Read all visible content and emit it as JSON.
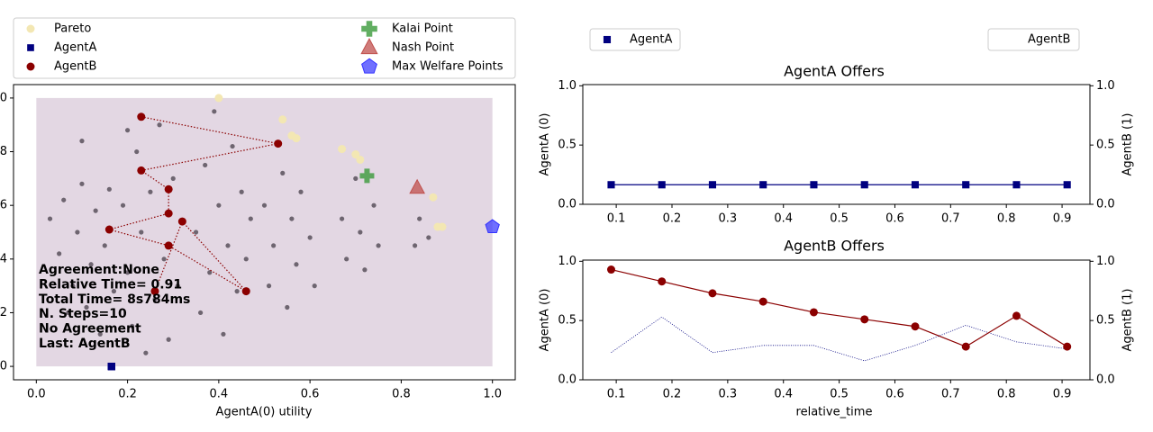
{
  "chart_data": [
    {
      "type": "scatter",
      "xlabel": "AgentA(0) utility",
      "xlim": [
        -0.05,
        1.05
      ],
      "ylim": [
        -0.05,
        1.05
      ],
      "xticks": [
        {
          "value": 0,
          "label": "0.0"
        },
        0.2,
        0.4,
        0.6,
        0.8,
        {
          "value": 1,
          "label": "1.0"
        }
      ],
      "yticks": [
        {
          "value": 0,
          "label": "0.0"
        },
        0.2,
        0.4,
        0.6,
        0.8,
        {
          "value": 1,
          "label": "1.0"
        }
      ],
      "region": {
        "x": [
          0,
          1
        ],
        "y": [
          0,
          1
        ],
        "color": "#e3d7e3"
      },
      "outcomes": {
        "color": "#6e6570",
        "x": [
          0.03,
          0.05,
          0.06,
          0.08,
          0.09,
          0.1,
          0.11,
          0.12,
          0.13,
          0.14,
          0.15,
          0.16,
          0.17,
          0.07,
          0.1,
          0.19,
          0.2,
          0.21,
          0.22,
          0.23,
          0.24,
          0.25,
          0.26,
          0.27,
          0.28,
          0.29,
          0.3,
          0.31,
          0.2,
          0.35,
          0.36,
          0.37,
          0.38,
          0.39,
          0.4,
          0.41,
          0.42,
          0.43,
          0.44,
          0.45,
          0.46,
          0.47,
          0.5,
          0.51,
          0.52,
          0.54,
          0.55,
          0.56,
          0.57,
          0.58,
          0.6,
          0.61,
          0.67,
          0.68,
          0.7,
          0.71,
          0.72,
          0.74,
          0.75,
          0.83,
          0.84,
          0.86
        ],
        "y": [
          0.55,
          0.42,
          0.62,
          0.3,
          0.5,
          0.68,
          0.22,
          0.38,
          0.58,
          0.12,
          0.45,
          0.66,
          0.28,
          0.2,
          0.84,
          0.6,
          0.35,
          0.15,
          0.8,
          0.5,
          0.05,
          0.65,
          0.25,
          0.9,
          0.4,
          0.1,
          0.7,
          0.3,
          0.88,
          0.5,
          0.2,
          0.75,
          0.35,
          0.95,
          0.6,
          0.12,
          0.45,
          0.82,
          0.28,
          0.65,
          0.4,
          0.55,
          0.6,
          0.3,
          0.45,
          0.72,
          0.22,
          0.55,
          0.38,
          0.65,
          0.48,
          0.3,
          0.55,
          0.4,
          0.7,
          0.5,
          0.36,
          0.6,
          0.45,
          0.45,
          0.55,
          0.48
        ]
      },
      "series": [
        {
          "name": "Pareto",
          "color": "#f3e7b3",
          "marker": "circle",
          "x": [
            0.4,
            0.54,
            0.56,
            0.57,
            0.67,
            0.7,
            0.71,
            0.87,
            0.89,
            0.88
          ],
          "y": [
            1.0,
            0.92,
            0.86,
            0.85,
            0.81,
            0.79,
            0.77,
            0.63,
            0.52,
            0.52
          ]
        },
        {
          "name": "AgentA",
          "color": "#000080",
          "marker": "square",
          "x": [
            0.165,
            0.165,
            0.165,
            0.165,
            0.165,
            0.165,
            0.165,
            0.165,
            0.165,
            0.165
          ],
          "y": [
            0,
            0,
            0,
            0,
            0,
            0,
            0,
            0,
            0,
            0
          ]
        },
        {
          "name": "AgentB",
          "color": "#8b0000",
          "marker": "circle",
          "line": true,
          "x": [
            0.23,
            0.53,
            0.23,
            0.29,
            0.29,
            0.16,
            0.29,
            0.46,
            0.32,
            0.26
          ],
          "y": [
            0.93,
            0.83,
            0.73,
            0.66,
            0.57,
            0.51,
            0.45,
            0.28,
            0.54,
            0.28
          ]
        },
        {
          "name": "Kalai Point",
          "color": "#3a9a3a",
          "marker": "plus",
          "x": [
            0.725
          ],
          "y": [
            0.71
          ]
        },
        {
          "name": "Nash Point",
          "color": "#c0504d",
          "marker": "triangle",
          "x": [
            0.835
          ],
          "y": [
            0.665
          ]
        },
        {
          "name": "Max Welfare Points",
          "color": "#3333ff",
          "marker": "pentagon",
          "x": [
            1.0
          ],
          "y": [
            0.52
          ]
        }
      ],
      "annotation": [
        "Agreement:None",
        "Relative Time= 0.91",
        "Total Time= 8s784ms",
        "N. Steps=10",
        "No Agreement",
        "Last: AgentB"
      ]
    },
    {
      "type": "line",
      "title": "AgentA Offers",
      "ylabel": "AgentA (0)",
      "y2label": "AgentB (1)",
      "x": [
        0.0909,
        0.1818,
        0.2727,
        0.3636,
        0.4545,
        0.5455,
        0.6364,
        0.7273,
        0.8182,
        0.9091
      ],
      "xlim": [
        0.04,
        0.95
      ],
      "ylim": [
        0,
        1.01
      ],
      "y2lim": [
        0,
        1.01
      ],
      "xticks": [
        0.1,
        0.2,
        0.3,
        0.4,
        0.5,
        0.6,
        0.7,
        0.8,
        0.9
      ],
      "yticks": [
        {
          "value": 0,
          "label": "0.0"
        },
        0.5,
        {
          "value": 1,
          "label": "1.0"
        }
      ],
      "y2ticks": [
        {
          "value": 0,
          "label": "0.0"
        },
        0.5,
        {
          "value": 1,
          "label": "1.0"
        }
      ],
      "series": [
        {
          "name": "AgentA",
          "color": "#000080",
          "marker": "square",
          "style": "solid",
          "values": [
            0.165,
            0.165,
            0.165,
            0.165,
            0.165,
            0.165,
            0.165,
            0.165,
            0.165,
            0.165
          ]
        },
        {
          "name": "AgentB",
          "color": "#000080",
          "marker": "none",
          "style": "dotted",
          "axis": "y2",
          "values": [
            0,
            0,
            0,
            0,
            0,
            0,
            0,
            0,
            0,
            0
          ]
        }
      ]
    },
    {
      "type": "line",
      "title": "AgentB Offers",
      "ylabel": "AgentA (0)",
      "y2label": "AgentB (1)",
      "xlabel": "relative_time",
      "x": [
        0.0909,
        0.1818,
        0.2727,
        0.3636,
        0.4545,
        0.5455,
        0.6364,
        0.7273,
        0.8182,
        0.9091
      ],
      "xlim": [
        0.04,
        0.95
      ],
      "ylim": [
        0,
        1.01
      ],
      "y2lim": [
        0,
        1.01
      ],
      "xticks": [
        0.1,
        0.2,
        0.3,
        0.4,
        0.5,
        0.6,
        0.7,
        0.8,
        0.9
      ],
      "yticks": [
        {
          "value": 0,
          "label": "0.0"
        },
        0.5,
        {
          "value": 1,
          "label": "1.0"
        }
      ],
      "y2ticks": [
        {
          "value": 0,
          "label": "0.0"
        },
        0.5,
        {
          "value": 1,
          "label": "1.0"
        }
      ],
      "series": [
        {
          "color": "#000080",
          "marker": "none",
          "style": "dotted",
          "values": [
            0.23,
            0.53,
            0.23,
            0.29,
            0.29,
            0.16,
            0.29,
            0.46,
            0.32,
            0.26
          ]
        },
        {
          "color": "#8b0000",
          "marker": "circle",
          "style": "solid",
          "axis": "y2",
          "values": [
            0.93,
            0.83,
            0.73,
            0.66,
            0.57,
            0.51,
            0.45,
            0.28,
            0.54,
            0.28
          ]
        }
      ]
    }
  ]
}
